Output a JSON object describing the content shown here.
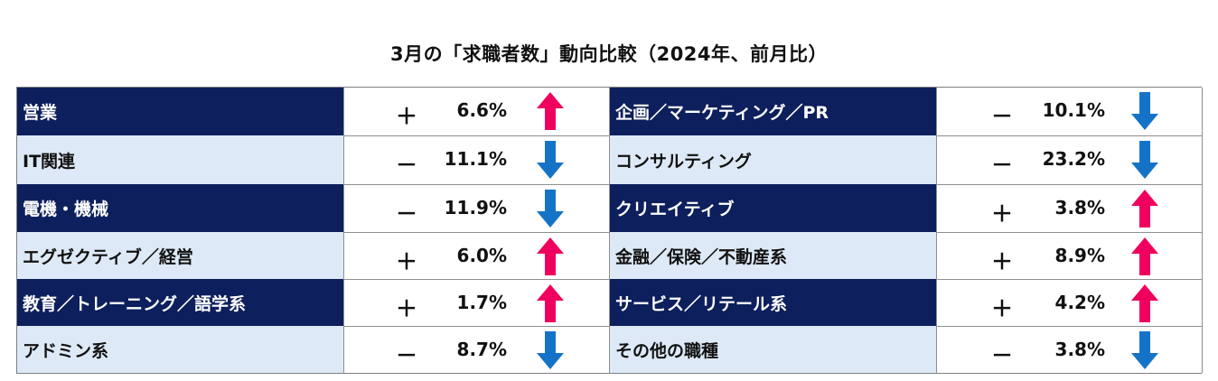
{
  "title": "3月の「求職者数」動向比較（2024年、前月比）",
  "colors": {
    "category_dark_bg": "#0d1f5c",
    "category_light_bg": "#dde9f6",
    "up_arrow": "#f0005e",
    "down_arrow": "#1573c7"
  },
  "rows": [
    {
      "left": {
        "category": "営業",
        "sign": "＋",
        "value": "6.6%",
        "arrow": "up-arrow-icon"
      },
      "right": {
        "category": "企画／マーケティング／PR",
        "sign": "－",
        "value": "10.1%",
        "arrow": "down-arrow-icon"
      }
    },
    {
      "left": {
        "category": "IT関連",
        "sign": "－",
        "value": "11.1%",
        "arrow": "down-arrow-icon"
      },
      "right": {
        "category": "コンサルティング",
        "sign": "－",
        "value": "23.2%",
        "arrow": "down-arrow-icon"
      }
    },
    {
      "left": {
        "category": "電機・機械",
        "sign": "－",
        "value": "11.9%",
        "arrow": "down-arrow-icon"
      },
      "right": {
        "category": "クリエイティブ",
        "sign": "＋",
        "value": "3.8%",
        "arrow": "up-arrow-icon"
      }
    },
    {
      "left": {
        "category": "エグゼクティブ／経営",
        "sign": "＋",
        "value": "6.0%",
        "arrow": "up-arrow-icon"
      },
      "right": {
        "category": "金融／保険／不動産系",
        "sign": "＋",
        "value": "8.9%",
        "arrow": "up-arrow-icon"
      }
    },
    {
      "left": {
        "category": "教育／トレーニング／語学系",
        "sign": "＋",
        "value": "1.7%",
        "arrow": "up-arrow-icon"
      },
      "right": {
        "category": "サービス／リテール系",
        "sign": "＋",
        "value": "4.2%",
        "arrow": "up-arrow-icon"
      }
    },
    {
      "left": {
        "category": "アドミン系",
        "sign": "－",
        "value": "8.7%",
        "arrow": "down-arrow-icon"
      },
      "right": {
        "category": "その他の職種",
        "sign": "－",
        "value": "3.8%",
        "arrow": "down-arrow-icon"
      }
    }
  ]
}
